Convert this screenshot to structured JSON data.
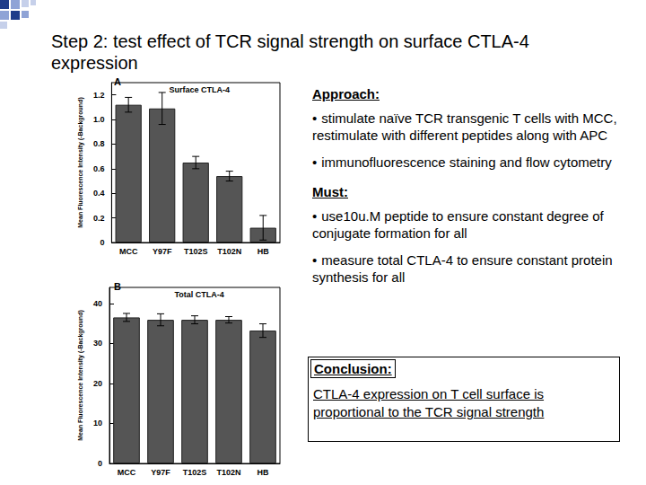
{
  "slide": {
    "title": "Step 2: test effect of TCR signal strength on surface CTLA-4 expression",
    "approach": {
      "heading": "Approach:",
      "bullets": [
        "stimulate naïve TCR transgenic T cells with MCC, restimulate with different peptides along with APC",
        "immunofluorescence staining and flow cytometry"
      ]
    },
    "must": {
      "heading": "Must:",
      "bullets": [
        "use10u.M peptide to ensure constant degree of conjugate formation for all",
        "measure total CTLA-4 to ensure constant protein synthesis for all"
      ]
    },
    "conclusion": {
      "heading": "Conclusion:",
      "text": "CTLA-4 expression on T cell surface is proportional to the TCR signal strength"
    }
  },
  "chart_data": [
    {
      "type": "bar",
      "panel": "A",
      "title": "Surface CTLA-4",
      "ylabel": "Mean Fluorescence Intensity (-Background)",
      "categories": [
        "MCC",
        "Y97F",
        "T102S",
        "T102N",
        "HB"
      ],
      "values": [
        1.12,
        1.09,
        0.65,
        0.54,
        0.12
      ],
      "errors": [
        0.06,
        0.13,
        0.05,
        0.04,
        0.1
      ],
      "color": "#555555",
      "ylim": [
        0,
        1.3
      ],
      "yticks": [
        0,
        0.2,
        0.4,
        0.6,
        0.8,
        {
          "value": 1,
          "label": "1.0"
        },
        1.2
      ]
    },
    {
      "type": "bar",
      "panel": "B",
      "title": "Total CTLA-4",
      "ylabel": "Mean Fluorescence Intensity (-Background)",
      "categories": [
        "MCC",
        "Y97F",
        "T102S",
        "T102N",
        "HB"
      ],
      "values": [
        36.5,
        35.9,
        35.9,
        35.9,
        33.2
      ],
      "errors": [
        1,
        1.5,
        1,
        0.8,
        1.7
      ],
      "color": "#555555",
      "ylim": [
        0,
        44
      ],
      "yticks": [
        0,
        10,
        20,
        30,
        40
      ]
    }
  ]
}
